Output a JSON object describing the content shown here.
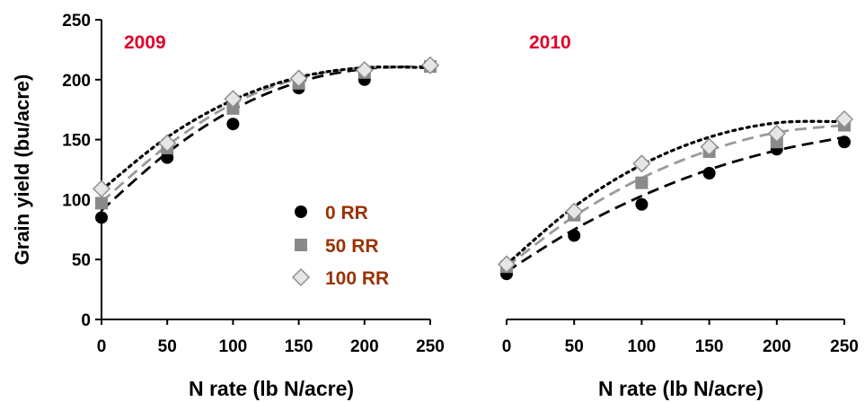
{
  "chart_data": [
    {
      "type": "scatter",
      "title": "2009",
      "xlabel": "N rate (lb N/acre)",
      "ylabel": "Grain yield (bu/acre)",
      "xlim": [
        0,
        250
      ],
      "ylim": [
        0,
        250
      ],
      "xticks": [
        "0",
        "50",
        "100",
        "150",
        "200",
        "250"
      ],
      "yticks": [
        "0",
        "50",
        "100",
        "150",
        "200",
        "250"
      ],
      "legend_position": "left-center",
      "legend_color": "#993300",
      "title_color": "#e0002a",
      "series": [
        {
          "name": "0 RR",
          "marker": "circle",
          "color": "#000000",
          "line": "dash",
          "x": [
            0,
            50,
            100,
            150,
            200,
            250
          ],
          "y": [
            85,
            135,
            163,
            193,
            200,
            211
          ],
          "fit": [
            91,
            139,
            175,
            198,
            209,
            211
          ]
        },
        {
          "name": "50 RR",
          "marker": "square",
          "color": "#8a8a8a",
          "line": "dash-light",
          "x": [
            0,
            50,
            100,
            150,
            200,
            250
          ],
          "y": [
            97,
            143,
            176,
            197,
            206,
            211
          ],
          "fit": [
            98,
            145,
            180,
            201,
            210,
            210
          ]
        },
        {
          "name": "100 RR",
          "marker": "diamond",
          "color": "#c8c8c8",
          "line": "dot",
          "x": [
            0,
            50,
            100,
            150,
            200,
            250
          ],
          "y": [
            109,
            147,
            184,
            201,
            208,
            212
          ],
          "fit": [
            108,
            152,
            183,
            202,
            210,
            210
          ]
        }
      ]
    },
    {
      "type": "scatter",
      "title": "2010",
      "xlabel": "N rate (lb N/acre)",
      "ylabel": "",
      "xlim": [
        0,
        250
      ],
      "ylim": [
        0,
        250
      ],
      "xticks": [
        "0",
        "50",
        "100",
        "150",
        "200",
        "250"
      ],
      "title_color": "#e0002a",
      "series": [
        {
          "name": "0 RR",
          "marker": "circle",
          "color": "#000000",
          "line": "dash",
          "x": [
            0,
            50,
            100,
            150,
            200,
            250
          ],
          "y": [
            38,
            70,
            96,
            122,
            142,
            148
          ],
          "fit": [
            40,
            75,
            103,
            125,
            141,
            152
          ]
        },
        {
          "name": "50 RR",
          "marker": "square",
          "color": "#8a8a8a",
          "line": "dash-light",
          "x": [
            0,
            50,
            100,
            150,
            200,
            250
          ],
          "y": [
            44,
            87,
            114,
            140,
            148,
            162
          ],
          "fit": [
            44,
            86,
            118,
            141,
            156,
            162
          ]
        },
        {
          "name": "100 RR",
          "marker": "diamond",
          "color": "#c8c8c8",
          "line": "dot",
          "x": [
            0,
            50,
            100,
            150,
            200,
            250
          ],
          "y": [
            46,
            90,
            130,
            144,
            155,
            167
          ],
          "fit": [
            46,
            94,
            129,
            152,
            164,
            165
          ]
        }
      ]
    }
  ]
}
